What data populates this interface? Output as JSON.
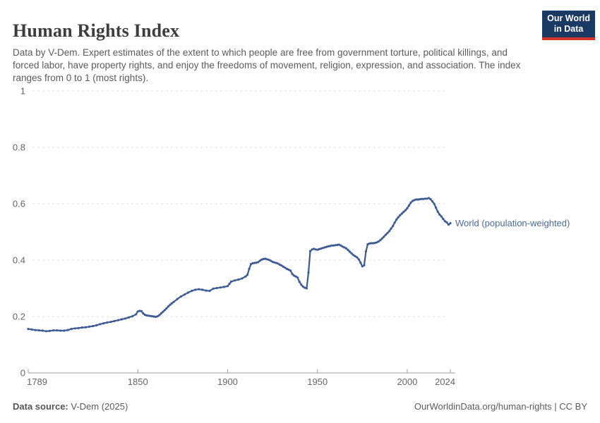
{
  "header": {
    "title": "Human Rights Index",
    "subtitle": "Data by V-Dem. Expert estimates of the extent to which people are free from government torture, political killings, and forced labor, have property rights, and enjoy the freedoms of movement, religion, expression, and association. The index ranges from 0 to 1 (most rights).",
    "logo": {
      "line1": "Our World",
      "line2": "in Data",
      "bg_color": "#1a3a63",
      "bar_color": "#d2362c"
    }
  },
  "chart_data": {
    "type": "line",
    "title": "Human Rights Index",
    "xlabel": "",
    "ylabel": "",
    "xlim": [
      1789,
      2024
    ],
    "ylim": [
      0,
      1
    ],
    "grid": "dashed-horizontal",
    "legend_position": "end-of-line",
    "x_ticks": [
      1789,
      1850,
      1900,
      1950,
      2000,
      2024
    ],
    "x_tick_labels": [
      "1789",
      "1850",
      "1900",
      "1950",
      "2000",
      "2024"
    ],
    "y_ticks": [
      0,
      0.2,
      0.4,
      0.6,
      0.8,
      1
    ],
    "y_tick_labels": [
      "0",
      "0.2",
      "0.4",
      "0.6",
      "0.8",
      "1"
    ],
    "axis_color": "#9e9e9e",
    "grid_color": "#dcdcdc",
    "tick_label_color": "#666666",
    "series": [
      {
        "name": "World (population-weighted)",
        "color": "#3d5a94",
        "label_color": "#4c6a9c",
        "points": [
          [
            1789,
            0.156
          ],
          [
            1791,
            0.154
          ],
          [
            1793,
            0.152
          ],
          [
            1795,
            0.151
          ],
          [
            1797,
            0.15
          ],
          [
            1799,
            0.148
          ],
          [
            1801,
            0.149
          ],
          [
            1803,
            0.151
          ],
          [
            1805,
            0.151
          ],
          [
            1807,
            0.15
          ],
          [
            1809,
            0.15
          ],
          [
            1811,
            0.152
          ],
          [
            1813,
            0.156
          ],
          [
            1815,
            0.158
          ],
          [
            1817,
            0.159
          ],
          [
            1819,
            0.161
          ],
          [
            1821,
            0.162
          ],
          [
            1823,
            0.164
          ],
          [
            1825,
            0.166
          ],
          [
            1827,
            0.169
          ],
          [
            1829,
            0.173
          ],
          [
            1831,
            0.176
          ],
          [
            1833,
            0.179
          ],
          [
            1835,
            0.181
          ],
          [
            1837,
            0.184
          ],
          [
            1839,
            0.187
          ],
          [
            1841,
            0.19
          ],
          [
            1843,
            0.193
          ],
          [
            1845,
            0.197
          ],
          [
            1847,
            0.201
          ],
          [
            1849,
            0.208
          ],
          [
            1850,
            0.218
          ],
          [
            1851,
            0.22
          ],
          [
            1852,
            0.219
          ],
          [
            1853,
            0.211
          ],
          [
            1854,
            0.206
          ],
          [
            1855,
            0.204
          ],
          [
            1856,
            0.203
          ],
          [
            1857,
            0.202
          ],
          [
            1858,
            0.201
          ],
          [
            1859,
            0.2
          ],
          [
            1860,
            0.199
          ],
          [
            1861,
            0.201
          ],
          [
            1862,
            0.205
          ],
          [
            1863,
            0.211
          ],
          [
            1864,
            0.217
          ],
          [
            1865,
            0.223
          ],
          [
            1866,
            0.229
          ],
          [
            1867,
            0.236
          ],
          [
            1868,
            0.242
          ],
          [
            1869,
            0.247
          ],
          [
            1870,
            0.252
          ],
          [
            1872,
            0.262
          ],
          [
            1874,
            0.271
          ],
          [
            1876,
            0.278
          ],
          [
            1878,
            0.285
          ],
          [
            1880,
            0.291
          ],
          [
            1882,
            0.295
          ],
          [
            1884,
            0.297
          ],
          [
            1886,
            0.295
          ],
          [
            1888,
            0.292
          ],
          [
            1890,
            0.291
          ],
          [
            1892,
            0.299
          ],
          [
            1894,
            0.301
          ],
          [
            1896,
            0.303
          ],
          [
            1898,
            0.305
          ],
          [
            1900,
            0.308
          ],
          [
            1901,
            0.316
          ],
          [
            1902,
            0.324
          ],
          [
            1904,
            0.328
          ],
          [
            1906,
            0.331
          ],
          [
            1908,
            0.335
          ],
          [
            1910,
            0.342
          ],
          [
            1911,
            0.348
          ],
          [
            1912,
            0.369
          ],
          [
            1913,
            0.386
          ],
          [
            1914,
            0.389
          ],
          [
            1915,
            0.39
          ],
          [
            1916,
            0.391
          ],
          [
            1917,
            0.393
          ],
          [
            1918,
            0.398
          ],
          [
            1919,
            0.402
          ],
          [
            1920,
            0.404
          ],
          [
            1921,
            0.405
          ],
          [
            1922,
            0.403
          ],
          [
            1923,
            0.401
          ],
          [
            1924,
            0.398
          ],
          [
            1925,
            0.394
          ],
          [
            1926,
            0.392
          ],
          [
            1927,
            0.39
          ],
          [
            1928,
            0.388
          ],
          [
            1929,
            0.384
          ],
          [
            1930,
            0.381
          ],
          [
            1931,
            0.377
          ],
          [
            1932,
            0.373
          ],
          [
            1933,
            0.369
          ],
          [
            1934,
            0.366
          ],
          [
            1935,
            0.363
          ],
          [
            1936,
            0.351
          ],
          [
            1937,
            0.345
          ],
          [
            1938,
            0.342
          ],
          [
            1939,
            0.338
          ],
          [
            1940,
            0.323
          ],
          [
            1941,
            0.313
          ],
          [
            1942,
            0.306
          ],
          [
            1943,
            0.302
          ],
          [
            1944,
            0.3
          ],
          [
            1945,
            0.356
          ],
          [
            1946,
            0.432
          ],
          [
            1947,
            0.438
          ],
          [
            1948,
            0.44
          ],
          [
            1949,
            0.438
          ],
          [
            1950,
            0.437
          ],
          [
            1951,
            0.439
          ],
          [
            1952,
            0.441
          ],
          [
            1953,
            0.443
          ],
          [
            1954,
            0.445
          ],
          [
            1955,
            0.447
          ],
          [
            1956,
            0.449
          ],
          [
            1957,
            0.45
          ],
          [
            1958,
            0.452
          ],
          [
            1959,
            0.452
          ],
          [
            1960,
            0.453
          ],
          [
            1961,
            0.454
          ],
          [
            1962,
            0.455
          ],
          [
            1963,
            0.452
          ],
          [
            1964,
            0.448
          ],
          [
            1965,
            0.445
          ],
          [
            1966,
            0.442
          ],
          [
            1967,
            0.436
          ],
          [
            1968,
            0.43
          ],
          [
            1969,
            0.424
          ],
          [
            1970,
            0.418
          ],
          [
            1971,
            0.414
          ],
          [
            1972,
            0.41
          ],
          [
            1973,
            0.403
          ],
          [
            1974,
            0.391
          ],
          [
            1975,
            0.378
          ],
          [
            1976,
            0.382
          ],
          [
            1977,
            0.431
          ],
          [
            1978,
            0.456
          ],
          [
            1979,
            0.459
          ],
          [
            1980,
            0.46
          ],
          [
            1981,
            0.46
          ],
          [
            1982,
            0.461
          ],
          [
            1983,
            0.463
          ],
          [
            1984,
            0.466
          ],
          [
            1985,
            0.471
          ],
          [
            1986,
            0.477
          ],
          [
            1987,
            0.483
          ],
          [
            1988,
            0.49
          ],
          [
            1989,
            0.496
          ],
          [
            1990,
            0.503
          ],
          [
            1991,
            0.512
          ],
          [
            1992,
            0.521
          ],
          [
            1993,
            0.533
          ],
          [
            1994,
            0.544
          ],
          [
            1995,
            0.552
          ],
          [
            1996,
            0.559
          ],
          [
            1997,
            0.565
          ],
          [
            1998,
            0.571
          ],
          [
            1999,
            0.577
          ],
          [
            2000,
            0.584
          ],
          [
            2001,
            0.594
          ],
          [
            2002,
            0.604
          ],
          [
            2003,
            0.61
          ],
          [
            2004,
            0.613
          ],
          [
            2005,
            0.615
          ],
          [
            2006,
            0.615
          ],
          [
            2007,
            0.616
          ],
          [
            2008,
            0.617
          ],
          [
            2009,
            0.617
          ],
          [
            2010,
            0.618
          ],
          [
            2011,
            0.618
          ],
          [
            2012,
            0.62
          ],
          [
            2013,
            0.616
          ],
          [
            2014,
            0.608
          ],
          [
            2015,
            0.6
          ],
          [
            2016,
            0.586
          ],
          [
            2017,
            0.572
          ],
          [
            2018,
            0.562
          ],
          [
            2019,
            0.555
          ],
          [
            2020,
            0.546
          ],
          [
            2021,
            0.538
          ],
          [
            2022,
            0.534
          ],
          [
            2023,
            0.526
          ],
          [
            2024,
            0.531
          ]
        ]
      }
    ]
  },
  "footer": {
    "source_label": "Data source:",
    "source_value": " V-Dem (2025)",
    "right_text": "OurWorldinData.org/human-rights | CC BY"
  }
}
